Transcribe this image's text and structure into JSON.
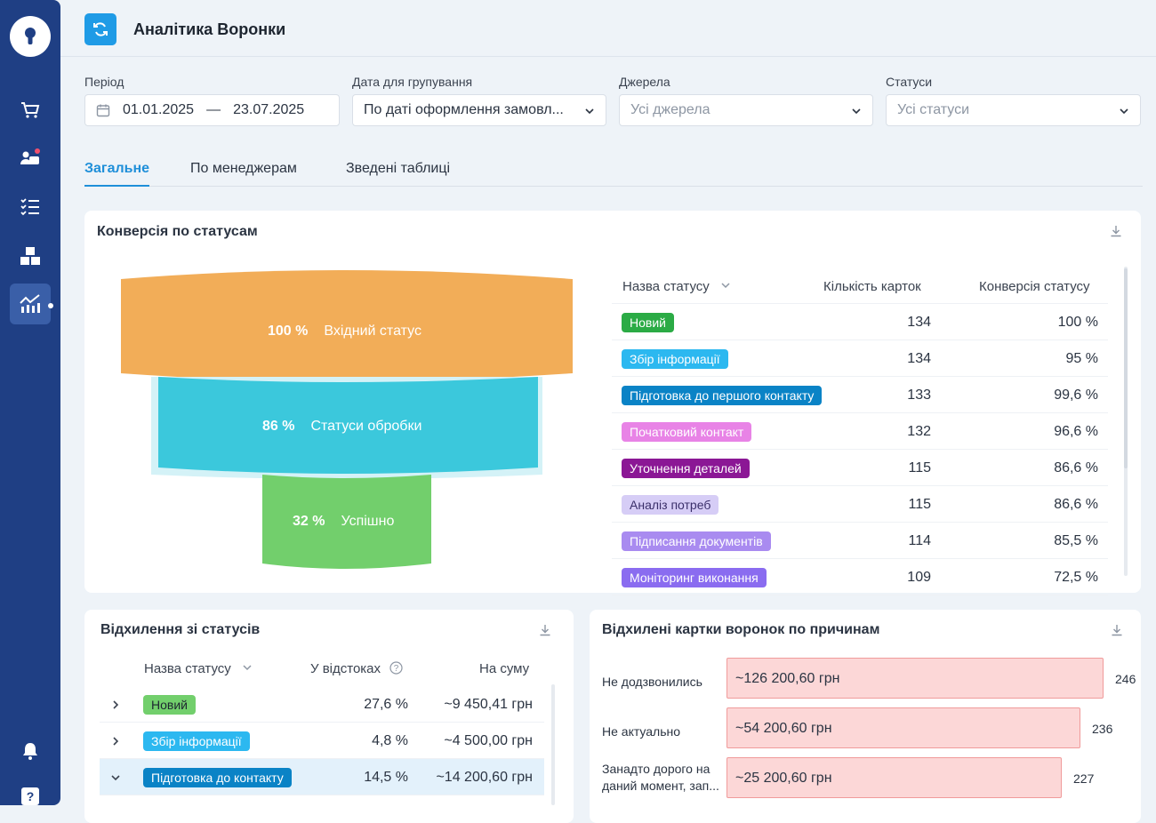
{
  "header": {
    "title": "Аналітика Воронки"
  },
  "filters": {
    "period": {
      "label": "Період",
      "from": "01.01.2025",
      "sep": "—",
      "to": "23.07.2025"
    },
    "group_date": {
      "label": "Дата для групування",
      "value": "По даті оформлення замовл..."
    },
    "sources": {
      "label": "Джерела",
      "placeholder": "Усі джерела"
    },
    "statuses": {
      "label": "Статуси",
      "placeholder": "Усі статуси"
    }
  },
  "tabs": [
    {
      "label": "Загальне"
    },
    {
      "label": "По менеджерам"
    },
    {
      "label": "Зведені таблиці"
    }
  ],
  "conversion_card": {
    "title": "Конверсія по статусам",
    "funnel": [
      {
        "percent": "100 %",
        "label": "Вхідний статус",
        "color": "#f2ad58",
        "fraction": 1.0
      },
      {
        "percent": "86 %",
        "label": "Статуси обробки",
        "color": "#3bc8dc",
        "fraction": 0.86
      },
      {
        "percent": "32 %",
        "label": "Успішно",
        "color": "#72cf6c",
        "fraction": 0.32
      }
    ],
    "columns": {
      "status": "Назва статусу",
      "count": "Кількість карток",
      "conversion": "Конверсія статусу"
    },
    "rows": [
      {
        "status": "Новий",
        "color": "#2bab45",
        "count": "134",
        "conversion": "100 %"
      },
      {
        "status": "Збір інформації",
        "color": "#2cb8f0",
        "count": "134",
        "conversion": "95 %"
      },
      {
        "status": "Підготовка до першого контакту",
        "color": "#0a83c6",
        "count": "133",
        "conversion": "99,6 %"
      },
      {
        "status": "Початковий контакт",
        "color": "#e883e6",
        "count": "132",
        "conversion": "96,6 %"
      },
      {
        "status": "Уточнення деталей",
        "color": "#8b1795",
        "count": "115",
        "conversion": "86,6 %"
      },
      {
        "status": "Аналіз потреб",
        "color": "#d6cdf6",
        "count": "115",
        "conversion": "86,6 %"
      },
      {
        "status": "Підписання документів",
        "color": "#a98bf0",
        "count": "114",
        "conversion": "85,5 %"
      },
      {
        "status": "Моніторинг виконання",
        "color": "#8a6cf0",
        "count": "109",
        "conversion": "72,5 %"
      }
    ]
  },
  "deviation_card": {
    "title": "Відхилення зі статусів",
    "columns": {
      "status": "Назва статусу",
      "percent": "У відстоках",
      "sum": "На суму"
    },
    "rows": [
      {
        "status": "Новий",
        "color": "#72cf6c",
        "percent": "27,6 %",
        "sum": "~9 450,41 грн",
        "expanded": false
      },
      {
        "status": "Збір інформації",
        "color": "#2cb8f0",
        "percent": "4,8 %",
        "sum": "~4 500,00 грн",
        "expanded": false
      },
      {
        "status": "Підготовка до контакту",
        "color": "#0a83c6",
        "percent": "14,5 %",
        "sum": "~14 200,60 грн",
        "expanded": true
      }
    ]
  },
  "reasons_card": {
    "title": "Відхилені картки воронок по причинам",
    "bars": [
      {
        "reason": "Не додзвонились",
        "amount": "~126 200,60 грн",
        "count": "246"
      },
      {
        "reason": "Не актуально",
        "amount": "~54 200,60 грн",
        "count": "236"
      },
      {
        "reason": "Занадто дорого на даний момент, зап...",
        "amount": "~25 200,60 грн",
        "count": "227"
      }
    ]
  },
  "sidebar": {
    "help_label": "?"
  }
}
